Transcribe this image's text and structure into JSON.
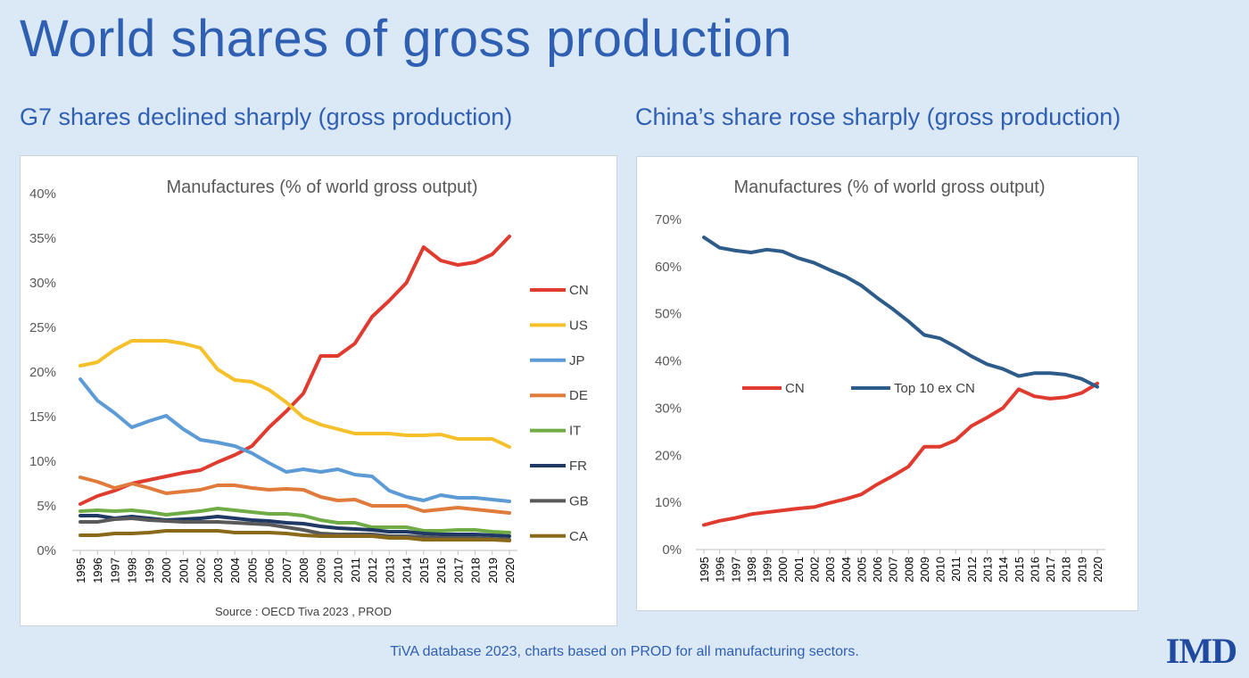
{
  "header": {
    "title": "World shares of gross production",
    "left_subtitle": "G7 shares declined sharply (gross production)",
    "right_subtitle": "China’s share rose sharply (gross production)"
  },
  "footer": {
    "note": "TiVA  database 2023, charts based on PROD for all manufacturing sectors.",
    "logo": "IMD"
  },
  "chart_data": [
    {
      "type": "line",
      "title": "Manufactures (% of world gross output)",
      "source": "Source : OECD Tiva 2023 , PROD",
      "xlabel": "",
      "ylabel": "",
      "ylim": [
        0,
        40
      ],
      "yticks": [
        "0%",
        "5%",
        "10%",
        "15%",
        "20%",
        "25%",
        "30%",
        "35%",
        "40%"
      ],
      "grid": false,
      "legend_position": "right",
      "x": [
        "1995",
        "1996",
        "1997",
        "1998",
        "1999",
        "2000",
        "2001",
        "2002",
        "2003",
        "2004",
        "2005",
        "2006",
        "2007",
        "2008",
        "2009",
        "2010",
        "2011",
        "2012",
        "2013",
        "2014",
        "2015",
        "2016",
        "2017",
        "2018",
        "2019",
        "2020"
      ],
      "series": [
        {
          "name": "CN",
          "color": "#e03b2f",
          "values": [
            5.2,
            6.1,
            6.7,
            7.5,
            7.9,
            8.3,
            8.7,
            9.0,
            9.9,
            10.7,
            11.7,
            13.8,
            15.6,
            17.6,
            21.8,
            21.8,
            23.2,
            26.2,
            28.0,
            30.0,
            34.0,
            32.5,
            32.0,
            32.3,
            33.2,
            35.2
          ]
        },
        {
          "name": "US",
          "color": "#f5c02a",
          "values": [
            20.7,
            21.1,
            22.5,
            23.5,
            23.5,
            23.5,
            23.2,
            22.7,
            20.3,
            19.1,
            18.9,
            18.0,
            16.6,
            14.9,
            14.1,
            13.6,
            13.1,
            13.1,
            13.1,
            12.9,
            12.9,
            13.0,
            12.5,
            12.5,
            12.5,
            11.6
          ]
        },
        {
          "name": "JP",
          "color": "#5c9bd5",
          "values": [
            19.2,
            16.8,
            15.4,
            13.8,
            14.5,
            15.1,
            13.6,
            12.4,
            12.1,
            11.7,
            10.9,
            9.8,
            8.8,
            9.1,
            8.8,
            9.1,
            8.5,
            8.3,
            6.7,
            6.0,
            5.6,
            6.2,
            5.9,
            5.9,
            5.7,
            5.5
          ]
        },
        {
          "name": "DE",
          "color": "#e07b3b",
          "values": [
            8.2,
            7.7,
            7.0,
            7.5,
            7.0,
            6.4,
            6.6,
            6.8,
            7.3,
            7.3,
            7.0,
            6.8,
            6.9,
            6.8,
            6.0,
            5.6,
            5.7,
            5.0,
            5.0,
            5.0,
            4.4,
            4.6,
            4.8,
            4.6,
            4.4,
            4.2
          ]
        },
        {
          "name": "IT",
          "color": "#6fac46",
          "values": [
            4.4,
            4.5,
            4.4,
            4.5,
            4.3,
            4.0,
            4.2,
            4.4,
            4.7,
            4.5,
            4.3,
            4.1,
            4.1,
            3.9,
            3.4,
            3.1,
            3.1,
            2.6,
            2.6,
            2.6,
            2.2,
            2.2,
            2.3,
            2.3,
            2.1,
            2.0
          ]
        },
        {
          "name": "FR",
          "color": "#1f3864",
          "values": [
            3.9,
            3.9,
            3.6,
            3.8,
            3.6,
            3.4,
            3.5,
            3.6,
            3.8,
            3.6,
            3.4,
            3.3,
            3.1,
            3.0,
            2.7,
            2.5,
            2.4,
            2.3,
            2.1,
            2.1,
            1.9,
            1.8,
            1.8,
            1.8,
            1.7,
            1.6
          ]
        },
        {
          "name": "GB",
          "color": "#595959",
          "values": [
            3.2,
            3.2,
            3.5,
            3.6,
            3.4,
            3.3,
            3.2,
            3.2,
            3.2,
            3.1,
            3.0,
            2.9,
            2.6,
            2.3,
            1.9,
            1.8,
            1.8,
            1.8,
            1.6,
            1.6,
            1.5,
            1.4,
            1.4,
            1.4,
            1.3,
            1.2
          ]
        },
        {
          "name": "CA",
          "color": "#8a6a1a",
          "values": [
            1.7,
            1.7,
            1.9,
            1.9,
            2.0,
            2.2,
            2.2,
            2.2,
            2.2,
            2.0,
            2.0,
            2.0,
            1.9,
            1.7,
            1.6,
            1.6,
            1.6,
            1.6,
            1.4,
            1.4,
            1.2,
            1.2,
            1.2,
            1.2,
            1.2,
            1.1
          ]
        }
      ]
    },
    {
      "type": "line",
      "title": "Manufactures (% of world gross output)",
      "xlabel": "",
      "ylabel": "",
      "ylim": [
        0,
        70
      ],
      "yticks": [
        "0%",
        "10%",
        "20%",
        "30%",
        "40%",
        "50%",
        "60%",
        "70%"
      ],
      "grid": false,
      "legend_position": "inside-middle",
      "x": [
        "1995",
        "1996",
        "1997",
        "1998",
        "1999",
        "2000",
        "2001",
        "2002",
        "2003",
        "2004",
        "2005",
        "2006",
        "2007",
        "2008",
        "2009",
        "2010",
        "2011",
        "2012",
        "2013",
        "2014",
        "2015",
        "2016",
        "2017",
        "2018",
        "2019",
        "2020"
      ],
      "series": [
        {
          "name": "CN",
          "color": "#e03b2f",
          "values": [
            5.2,
            6.1,
            6.7,
            7.5,
            7.9,
            8.3,
            8.7,
            9.0,
            9.9,
            10.7,
            11.7,
            13.8,
            15.6,
            17.6,
            21.8,
            21.8,
            23.2,
            26.2,
            28.0,
            30.0,
            34.0,
            32.5,
            32.0,
            32.3,
            33.2,
            35.2
          ]
        },
        {
          "name": "Top  10 ex CN",
          "color": "#2e5c8a",
          "values": [
            66.2,
            64.0,
            63.4,
            63.0,
            63.6,
            63.2,
            61.8,
            60.8,
            59.3,
            57.9,
            56.0,
            53.4,
            51.0,
            48.4,
            45.5,
            44.8,
            43.0,
            41.0,
            39.3,
            38.3,
            36.8,
            37.4,
            37.4,
            37.1,
            36.2,
            34.5
          ]
        }
      ]
    }
  ]
}
